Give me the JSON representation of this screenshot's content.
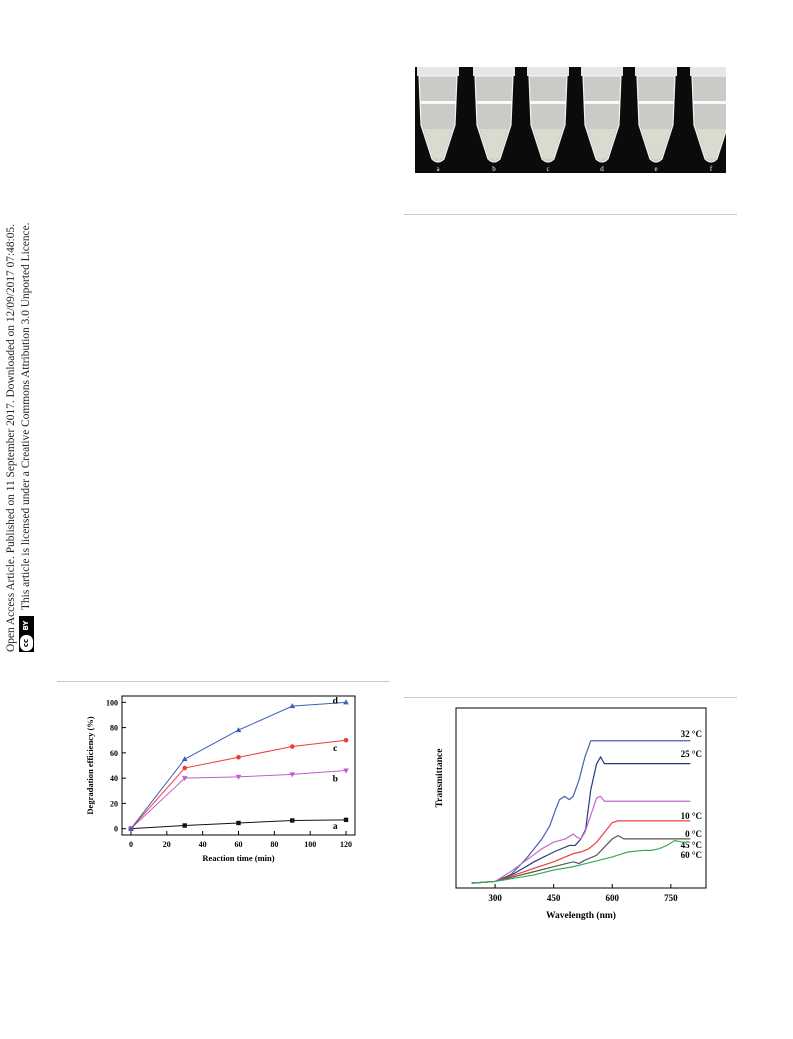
{
  "side_note": {
    "line1": "Open Access Article. Published on 11 September 2017. Downloaded on 12/09/2017 07:48:05.",
    "line2": "This article is licensed under a Creative Commons Attribution 3.0 Unported Licence.",
    "badge_cc": "cc",
    "badge_by": "BY"
  },
  "photo": {
    "tube_labels": [
      "a",
      "b",
      "c",
      "d",
      "e",
      "f"
    ]
  },
  "chart_data": [
    {
      "type": "line",
      "xlabel": "Reaction time (min)",
      "ylabel": "Degradation efficiency (%)",
      "xlim": [
        -5,
        125
      ],
      "ylim": [
        -5,
        105
      ],
      "xticks": [
        0,
        20,
        40,
        60,
        80,
        100,
        120
      ],
      "yticks": [
        0,
        20,
        40,
        60,
        80,
        100
      ],
      "x": [
        0,
        30,
        60,
        90,
        120
      ],
      "series": [
        {
          "name": "a",
          "color": "#111111",
          "marker": "square",
          "values": [
            0,
            2.5,
            4.5,
            6.5,
            7
          ]
        },
        {
          "name": "b",
          "color": "#c05ec8",
          "marker": "triangle-down",
          "values": [
            0,
            40,
            41,
            43,
            46
          ]
        },
        {
          "name": "c",
          "color": "#ee3b3b",
          "marker": "circle",
          "values": [
            0,
            48,
            56.5,
            65,
            70
          ]
        },
        {
          "name": "d",
          "color": "#3d5fb8",
          "marker": "triangle-up",
          "values": [
            0,
            55,
            78,
            97,
            100
          ]
        }
      ],
      "grid": false
    },
    {
      "type": "line",
      "xlabel": "Wavelength (nm)",
      "ylabel": "Transmittance",
      "xlim": [
        200,
        840
      ],
      "ylim": [
        0,
        110
      ],
      "xticks": [
        300,
        450,
        600,
        750
      ],
      "series": [
        {
          "name": "32 °C",
          "color": "#4b5fb0",
          "points": [
            [
              240,
              3
            ],
            [
              300,
              4
            ],
            [
              340,
              8
            ],
            [
              380,
              18
            ],
            [
              420,
              30
            ],
            [
              440,
              38
            ],
            [
              455,
              48
            ],
            [
              465,
              54
            ],
            [
              478,
              56
            ],
            [
              490,
              54
            ],
            [
              500,
              56
            ],
            [
              515,
              66
            ],
            [
              530,
              80
            ],
            [
              545,
              90
            ],
            [
              555,
              90
            ],
            [
              800,
              90
            ]
          ]
        },
        {
          "name": "25 °C",
          "color": "#283a7c",
          "points": [
            [
              240,
              3
            ],
            [
              300,
              4
            ],
            [
              350,
              9
            ],
            [
              400,
              16
            ],
            [
              450,
              22
            ],
            [
              490,
              26
            ],
            [
              505,
              26
            ],
            [
              520,
              30
            ],
            [
              532,
              36
            ],
            [
              545,
              60
            ],
            [
              560,
              76
            ],
            [
              570,
              80
            ],
            [
              580,
              76
            ],
            [
              800,
              76
            ]
          ]
        },
        {
          "name": "10 °C",
          "color": "#ee4040",
          "points": [
            [
              240,
              3
            ],
            [
              300,
              4
            ],
            [
              350,
              8
            ],
            [
              400,
              12
            ],
            [
              450,
              16
            ],
            [
              500,
              21
            ],
            [
              520,
              22
            ],
            [
              540,
              24
            ],
            [
              560,
              28
            ],
            [
              580,
              34
            ],
            [
              600,
              40
            ],
            [
              615,
              41
            ],
            [
              800,
              41
            ]
          ]
        },
        {
          "name": "0 °C",
          "color": "#c06ac8",
          "points": [
            [
              240,
              3
            ],
            [
              300,
              4
            ],
            [
              340,
              10
            ],
            [
              380,
              17
            ],
            [
              420,
              24
            ],
            [
              450,
              28
            ],
            [
              480,
              30
            ],
            [
              500,
              33
            ],
            [
              510,
              31
            ],
            [
              520,
              30
            ],
            [
              530,
              34
            ],
            [
              550,
              48
            ],
            [
              560,
              55
            ],
            [
              570,
              56
            ],
            [
              580,
              53
            ],
            [
              800,
              53
            ]
          ]
        },
        {
          "name": "45 °C",
          "color": "#555555",
          "points": [
            [
              240,
              3
            ],
            [
              300,
              4
            ],
            [
              350,
              7
            ],
            [
              400,
              10
            ],
            [
              450,
              13
            ],
            [
              500,
              16
            ],
            [
              515,
              15
            ],
            [
              530,
              17
            ],
            [
              560,
              20
            ],
            [
              580,
              25
            ],
            [
              600,
              30
            ],
            [
              615,
              32
            ],
            [
              630,
              30
            ],
            [
              800,
              30
            ]
          ]
        },
        {
          "name": "60 °C",
          "color": "#3cab5c",
          "points": [
            [
              240,
              3
            ],
            [
              300,
              4
            ],
            [
              350,
              6
            ],
            [
              400,
              8
            ],
            [
              450,
              11
            ],
            [
              500,
              13
            ],
            [
              550,
              16
            ],
            [
              600,
              19
            ],
            [
              640,
              22
            ],
            [
              680,
              23
            ],
            [
              700,
              23
            ],
            [
              720,
              24
            ],
            [
              740,
              26
            ],
            [
              760,
              29
            ],
            [
              780,
              28
            ],
            [
              800,
              28
            ]
          ]
        }
      ]
    }
  ]
}
